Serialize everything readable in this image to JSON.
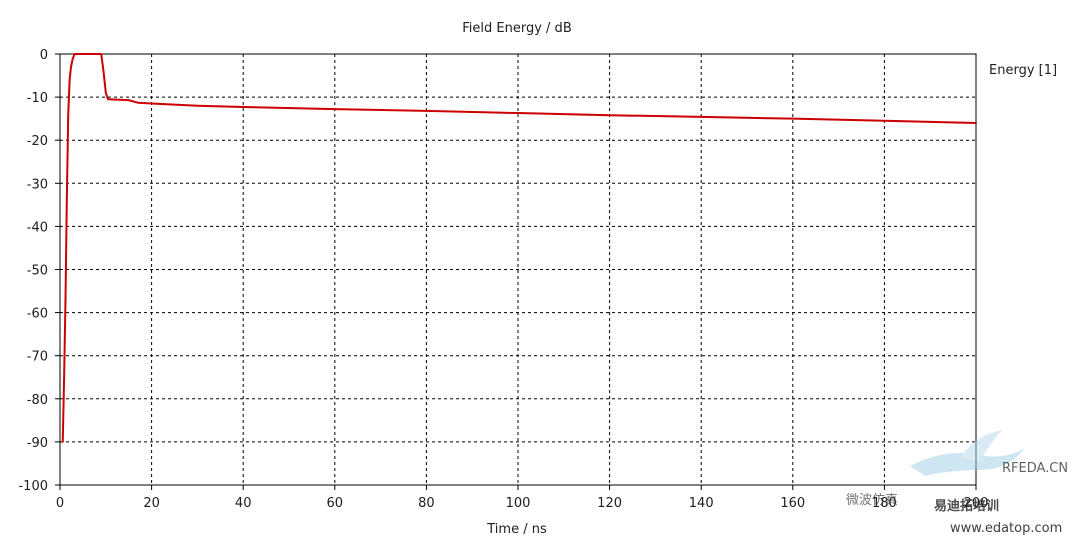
{
  "chart_data": {
    "type": "line",
    "title": "Field Energy / dB",
    "xlabel": "Time / ns",
    "ylabel": "",
    "xlim": [
      0,
      200
    ],
    "ylim": [
      -100,
      0
    ],
    "x_ticks": [
      0,
      20,
      40,
      60,
      80,
      100,
      120,
      140,
      160,
      180,
      200
    ],
    "y_ticks": [
      0,
      -10,
      -20,
      -30,
      -40,
      -50,
      -60,
      -70,
      -80,
      -90,
      -100
    ],
    "grid": true,
    "legend_position": "top-right",
    "series": [
      {
        "name": "Energy [1]",
        "color": "#cc0000",
        "x": [
          0.6,
          0.9,
          1.2,
          1.5,
          1.8,
          2.1,
          2.4,
          2.8,
          3.2,
          4,
          6,
          8,
          9,
          9.5,
          10,
          10.5,
          15,
          17,
          20,
          30,
          40,
          60,
          80,
          100,
          120,
          140,
          160,
          180,
          200
        ],
        "y": [
          -90,
          -75,
          -57,
          -33,
          -14,
          -6,
          -3,
          -1,
          0,
          0,
          0,
          0,
          0,
          -4,
          -9,
          -10.5,
          -10.7,
          -11.3,
          -11.5,
          -12,
          -12.3,
          -12.8,
          -13.2,
          -13.7,
          -14.2,
          -14.6,
          -15,
          -15.5,
          -16
        ]
      }
    ]
  },
  "watermark": {
    "lines": [
      "RFEDA.CN",
      "易迪拓培训",
      "www.edatop.com",
      "微波仿真"
    ]
  }
}
